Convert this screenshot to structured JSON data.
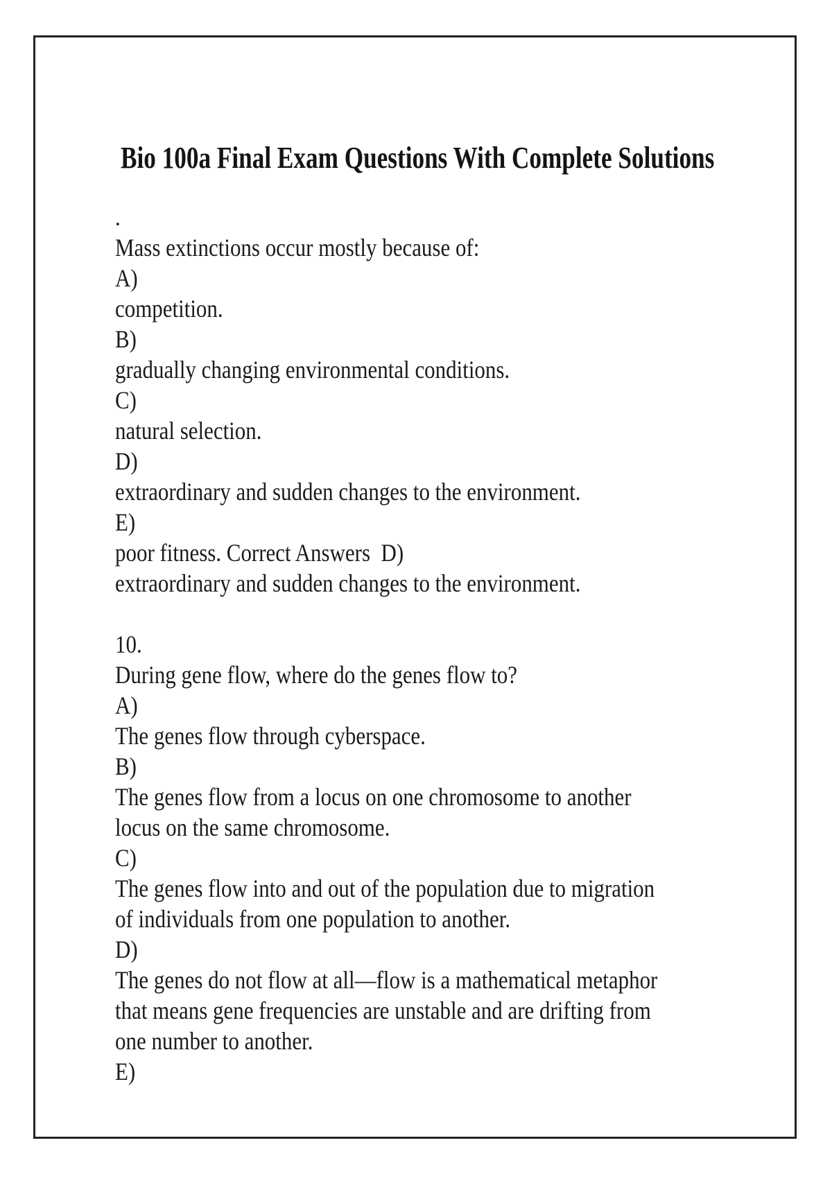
{
  "document": {
    "title": "Bio 100a Final Exam Questions With Complete Solutions",
    "lines": [
      ".",
      "Mass extinctions occur mostly because of:",
      "A)",
      "competition.",
      "B)",
      "gradually changing environmental conditions.",
      "C)",
      "natural selection.",
      "D)",
      "extraordinary and sudden changes to the environment.",
      "E)",
      "poor fitness. Correct Answers  D)",
      "extraordinary and sudden changes to the environment.",
      "",
      "10.",
      "During gene flow, where do the genes flow to?",
      "A)",
      "The genes flow through cyberspace.",
      "B)",
      "The genes flow from a locus on one chromosome to another",
      "locus on the same chromosome.",
      "C)",
      "The genes flow into and out of the population due to migration",
      "of individuals from one population to another.",
      "D)",
      "The genes do not flow at all—flow is a mathematical metaphor",
      "that means gene frequencies are unstable and are drifting from",
      "one number to another.",
      "E)"
    ],
    "border_color": "#222222",
    "text_color": "#1b1b1b"
  }
}
